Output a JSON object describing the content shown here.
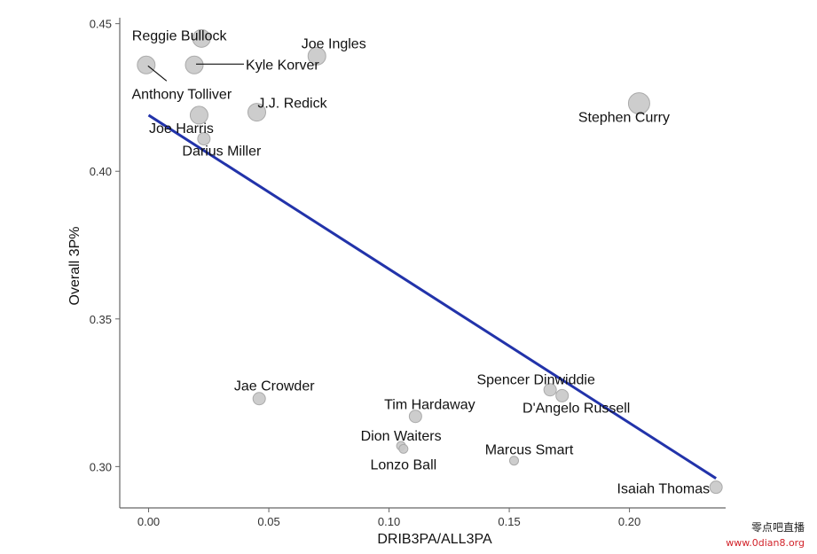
{
  "chart_data": {
    "type": "scatter",
    "xlabel": "DRIB3PA/ALL3PA",
    "ylabel": "Overall 3P%",
    "xlim": [
      -0.012,
      0.24
    ],
    "ylim": [
      0.286,
      0.452
    ],
    "xticks": [
      "0.00",
      "0.05",
      "0.10",
      "0.15",
      "0.20"
    ],
    "xtick_values": [
      0.0,
      0.05,
      0.1,
      0.15,
      0.2
    ],
    "yticks": [
      "0.30",
      "0.35",
      "0.40",
      "0.45"
    ],
    "ytick_values": [
      0.3,
      0.35,
      0.4,
      0.45
    ],
    "grid": false,
    "points": [
      {
        "label": "Reggie Bullock",
        "x": 0.022,
        "y": 0.445,
        "size": "medium"
      },
      {
        "label": "Anthony Tolliver",
        "x": -0.001,
        "y": 0.436,
        "size": "medium"
      },
      {
        "label": "Kyle Korver",
        "x": 0.019,
        "y": 0.436,
        "size": "medium"
      },
      {
        "label": "Joe Ingles",
        "x": 0.07,
        "y": 0.439,
        "size": "medium"
      },
      {
        "label": "J.J. Redick",
        "x": 0.045,
        "y": 0.42,
        "size": "medium"
      },
      {
        "label": "Joe Harris",
        "x": 0.021,
        "y": 0.419,
        "size": "medium"
      },
      {
        "label": "Darius Miller",
        "x": 0.023,
        "y": 0.411,
        "size": "small"
      },
      {
        "label": "Stephen Curry",
        "x": 0.204,
        "y": 0.423,
        "size": "large"
      },
      {
        "label": "Jae Crowder",
        "x": 0.046,
        "y": 0.323,
        "size": "small"
      },
      {
        "label": "Tim Hardaway",
        "x": 0.111,
        "y": 0.317,
        "size": "small"
      },
      {
        "label": "Dion Waiters",
        "x": 0.105,
        "y": 0.307,
        "size": "tiny"
      },
      {
        "label": "Lonzo Ball",
        "x": 0.106,
        "y": 0.306,
        "size": "tiny"
      },
      {
        "label": "Marcus Smart",
        "x": 0.152,
        "y": 0.302,
        "size": "tiny"
      },
      {
        "label": "Spencer Dinwiddie",
        "x": 0.167,
        "y": 0.326,
        "size": "small"
      },
      {
        "label": "D'Angelo Russell",
        "x": 0.172,
        "y": 0.324,
        "size": "small"
      },
      {
        "label": "Isaiah Thomas",
        "x": 0.236,
        "y": 0.293,
        "size": "small"
      }
    ],
    "trendline": {
      "x": [
        0.0,
        0.236
      ],
      "y": [
        0.419,
        0.296
      ],
      "color": "#2233aa"
    },
    "point_color": "#c8c8c8",
    "point_stroke": "#aaaaaa"
  },
  "watermark": {
    "line1": "零点吧直播",
    "line2": "www.0dian8.org"
  }
}
